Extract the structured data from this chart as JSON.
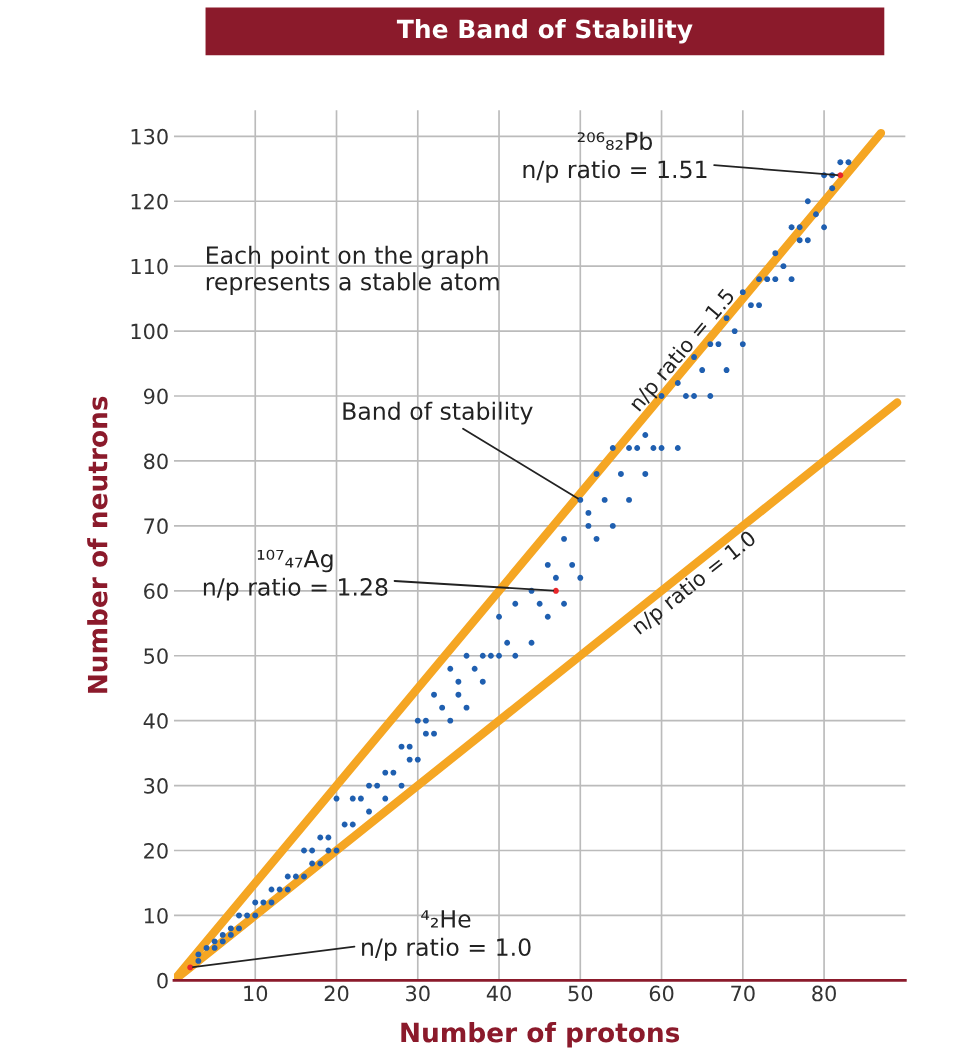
{
  "chart_data": {
    "type": "scatter",
    "title": "The Band of Stability",
    "xlabel": "Number of protons",
    "ylabel": "Number of neutrons",
    "xlim": [
      0,
      90
    ],
    "ylim": [
      0,
      134
    ],
    "xticks": [
      10,
      20,
      30,
      40,
      50,
      60,
      70,
      80
    ],
    "yticks": [
      0,
      10,
      20,
      30,
      40,
      50,
      60,
      70,
      80,
      90,
      100,
      110,
      120,
      130
    ],
    "grid": true,
    "marker": "circle",
    "series": [
      {
        "type": "line",
        "marker": "none",
        "name": "n/p ratio = 1.5",
        "color": "#f5a623",
        "x": [
          0,
          87
        ],
        "values": [
          0,
          130.5
        ]
      },
      {
        "type": "line",
        "marker": "none",
        "name": "n/p ratio = 1.0",
        "color": "#f5a623",
        "x": [
          0,
          89
        ],
        "values": [
          0,
          89
        ]
      },
      {
        "color": "#1f5fb0",
        "x": [
          3,
          3,
          4,
          5,
          5,
          6,
          6,
          7,
          7,
          8,
          8,
          9,
          10,
          10,
          11,
          12,
          12,
          13,
          14,
          14,
          15,
          16,
          16,
          17,
          17,
          18,
          18,
          19,
          19,
          20,
          20,
          21,
          22,
          22,
          23,
          24,
          24,
          25,
          26,
          26,
          27,
          28,
          28,
          29,
          29,
          30,
          30,
          31,
          31,
          32,
          32,
          33,
          34,
          34,
          35,
          35,
          36,
          36,
          37,
          38,
          38,
          39,
          40,
          40,
          41,
          42,
          42,
          44,
          44,
          45,
          46,
          46,
          47,
          48,
          48,
          49,
          50,
          50,
          51,
          51,
          52,
          52,
          53,
          54,
          54,
          55,
          56,
          56,
          57,
          58,
          58,
          59,
          60,
          60,
          62,
          62,
          63,
          64,
          64,
          65,
          66,
          66,
          67,
          68,
          68,
          69,
          70,
          70,
          71,
          72,
          72,
          73,
          74,
          74,
          75,
          76,
          76,
          77,
          77,
          78,
          78,
          79,
          80,
          80,
          81,
          81,
          82,
          83
        ],
        "values": [
          3,
          4,
          5,
          5,
          6,
          6,
          7,
          7,
          8,
          8,
          10,
          10,
          10,
          12,
          12,
          12,
          14,
          14,
          14,
          16,
          16,
          16,
          20,
          18,
          20,
          18,
          22,
          20,
          22,
          20,
          28,
          24,
          24,
          28,
          28,
          26,
          30,
          30,
          28,
          32,
          32,
          30,
          36,
          34,
          36,
          34,
          40,
          38,
          40,
          38,
          44,
          42,
          40,
          48,
          44,
          46,
          42,
          50,
          48,
          46,
          50,
          50,
          50,
          56,
          52,
          50,
          58,
          52,
          60,
          58,
          56,
          64,
          62,
          58,
          68,
          64,
          62,
          74,
          70,
          72,
          68,
          78,
          74,
          70,
          82,
          78,
          74,
          82,
          82,
          78,
          84,
          82,
          82,
          90,
          82,
          92,
          90,
          90,
          96,
          94,
          90,
          98,
          98,
          94,
          102,
          100,
          98,
          106,
          104,
          104,
          108,
          108,
          108,
          112,
          110,
          108,
          116,
          114,
          116,
          114,
          120,
          118,
          116,
          124,
          122,
          124,
          126,
          126
        ]
      },
      {
        "color": "#e8262a",
        "x": [
          2,
          47,
          82
        ],
        "values": [
          2,
          60,
          124
        ]
      }
    ],
    "annotations": [
      {
        "text": "²⁰⁶₈₂Pb\nn/p ratio = 1.51",
        "x": 82,
        "y": 124
      },
      {
        "text": "¹⁰⁷₄₇Ag\nn/p ratio = 1.28",
        "x": 47,
        "y": 60
      },
      {
        "text": "⁴₂He\nn/p ratio = 1.0",
        "x": 2,
        "y": 2
      },
      {
        "text": "Band of stability",
        "x": 50,
        "y": 74
      },
      "Each point on the graph\nrepresents a stable atom"
    ]
  }
}
